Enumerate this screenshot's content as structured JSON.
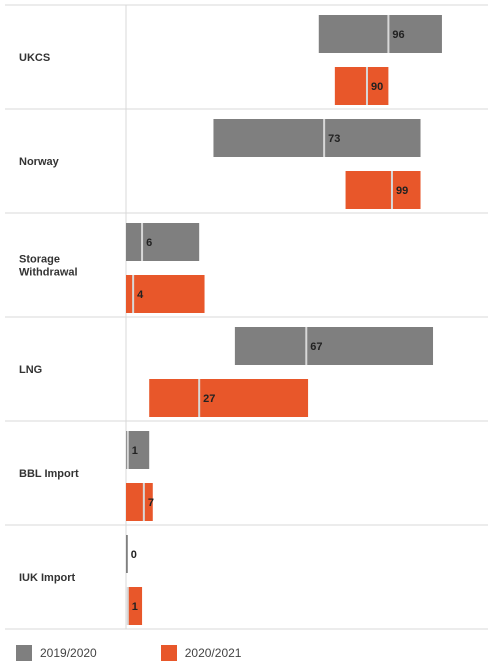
{
  "chart_data": {
    "type": "bar",
    "orientation": "floating-horizontal",
    "categories": [
      "UKCS",
      "Norway",
      "Storage Withdrawal",
      "LNG",
      "BBL Import",
      "IUK Import"
    ],
    "category_lines": [
      [
        "UKCS"
      ],
      [
        "Norway"
      ],
      [
        "Storage",
        "Withdrawal"
      ],
      [
        "LNG"
      ],
      [
        "BBL Import"
      ],
      [
        "IUK Import"
      ]
    ],
    "series": [
      {
        "name": "2019/2020",
        "color": "#7f7f7f",
        "values": [
          96,
          73,
          6,
          67,
          1,
          0
        ],
        "ranges": [
          [
            54,
            88.5
          ],
          [
            24.5,
            82.5
          ],
          [
            0,
            20.5
          ],
          [
            30.5,
            86
          ],
          [
            0,
            6.5
          ],
          [
            0,
            0.5
          ]
        ],
        "markers": [
          73.5,
          55.5,
          4.5,
          50.5,
          0.5,
          0.2
        ]
      },
      {
        "name": "2020/2021",
        "color": "#e8572a",
        "values": [
          90,
          99,
          4,
          27,
          7,
          1
        ],
        "ranges": [
          [
            58.5,
            73.5
          ],
          [
            61.5,
            82.5
          ],
          [
            0,
            22
          ],
          [
            6.5,
            51
          ],
          [
            0,
            7.5
          ],
          [
            0.5,
            4.5
          ]
        ],
        "markers": [
          67.5,
          74.5,
          2,
          20.5,
          5,
          0.5
        ]
      }
    ],
    "legend": {
      "position": "bottom-left",
      "entries": [
        "2019/2020",
        "2020/2021"
      ]
    },
    "grid": "category separators"
  }
}
